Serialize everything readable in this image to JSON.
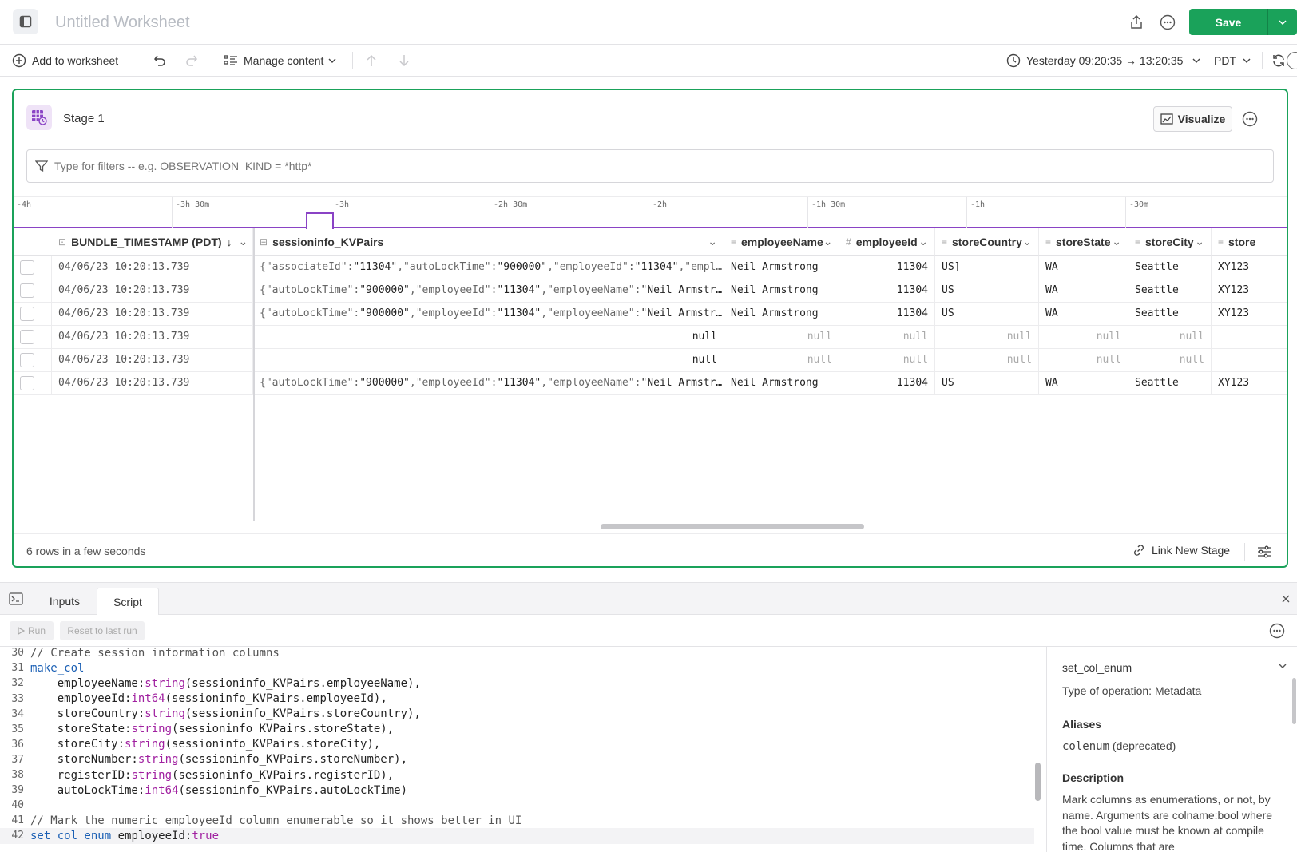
{
  "header": {
    "title": "Untitled Worksheet",
    "save_label": "Save"
  },
  "toolbar": {
    "add_to_worksheet": "Add to worksheet",
    "manage_content": "Manage content",
    "time_range": "Yesterday 09:20:35 → 13:20:35",
    "timezone": "PDT"
  },
  "stage": {
    "name": "Stage 1",
    "visualize_label": "Visualize",
    "filter_placeholder": "Type for filters -- e.g. OBSERVATION_KIND = *http*",
    "timeline_ticks": [
      "-4h",
      "-3h 30m",
      "-3h",
      "-2h 30m",
      "-2h",
      "-1h 30m",
      "-1h",
      "-30m"
    ],
    "columns": [
      {
        "label": "BUNDLE_TIMESTAMP (PDT)",
        "icon": "timestamp-icon"
      },
      {
        "label": "sessioninfo_KVPairs",
        "icon": "object-icon"
      },
      {
        "label": "employeeName",
        "icon": "string-icon"
      },
      {
        "label": "employeeId",
        "icon": "number-icon"
      },
      {
        "label": "storeCountry",
        "icon": "string-icon"
      },
      {
        "label": "storeState",
        "icon": "string-icon"
      },
      {
        "label": "storeCity",
        "icon": "string-icon"
      },
      {
        "label": "store",
        "icon": "string-icon"
      }
    ],
    "rows": [
      {
        "ts": "04/06/23 10:20:13.739",
        "kv": [
          [
            "\"associateId\"",
            "\"11304\""
          ],
          [
            "\"autoLockTime\"",
            "\"900000\""
          ],
          [
            "\"employeeId\"",
            "\"11304\""
          ],
          [
            "\"empl…",
            ""
          ]
        ],
        "kv_null": false,
        "employeeName": "Neil Armstrong",
        "employeeId": "11304",
        "storeCountry": "US]",
        "storeState": "WA",
        "storeCity": "Seattle",
        "store": "XY123"
      },
      {
        "ts": "04/06/23 10:20:13.739",
        "kv": [
          [
            "\"autoLockTime\"",
            "\"900000\""
          ],
          [
            "\"employeeId\"",
            "\"11304\""
          ],
          [
            "\"employeeName\"",
            "\"Neil Armstr…"
          ]
        ],
        "kv_null": false,
        "employeeName": "Neil Armstrong",
        "employeeId": "11304",
        "storeCountry": "US",
        "storeState": "WA",
        "storeCity": "Seattle",
        "store": "XY123"
      },
      {
        "ts": "04/06/23 10:20:13.739",
        "kv": [
          [
            "\"autoLockTime\"",
            "\"900000\""
          ],
          [
            "\"employeeId\"",
            "\"11304\""
          ],
          [
            "\"employeeName\"",
            "\"Neil Armstr…"
          ]
        ],
        "kv_null": false,
        "employeeName": "Neil Armstrong",
        "employeeId": "11304",
        "storeCountry": "US",
        "storeState": "WA",
        "storeCity": "Seattle",
        "store": "XY123"
      },
      {
        "ts": "04/06/23 10:20:13.739",
        "kv_text": "null",
        "kv_null": true,
        "employeeName": "null",
        "employeeId": "null",
        "storeCountry": "null",
        "storeState": "null",
        "storeCity": "null",
        "store": ""
      },
      {
        "ts": "04/06/23 10:20:13.739",
        "kv_text": "null",
        "kv_null": true,
        "employeeName": "null",
        "employeeId": "null",
        "storeCountry": "null",
        "storeState": "null",
        "storeCity": "null",
        "store": ""
      },
      {
        "ts": "04/06/23 10:20:13.739",
        "kv": [
          [
            "\"autoLockTime\"",
            "\"900000\""
          ],
          [
            "\"employeeId\"",
            "\"11304\""
          ],
          [
            "\"employeeName\"",
            "\"Neil Armstr…"
          ]
        ],
        "kv_null": false,
        "employeeName": "Neil Armstrong",
        "employeeId": "11304",
        "storeCountry": "US",
        "storeState": "WA",
        "storeCity": "Seattle",
        "store": "XY123"
      }
    ],
    "row_count": "6 rows in a few seconds",
    "link_new_stage": "Link New Stage"
  },
  "console": {
    "tabs": [
      "Inputs",
      "Script"
    ],
    "active_tab": "Script",
    "run_label": "Run",
    "reset_label": "Reset to last run",
    "code_lines": [
      {
        "n": "30",
        "tokens": [
          [
            "com",
            "// Create session information columns"
          ]
        ]
      },
      {
        "n": "31",
        "tokens": [
          [
            "kw",
            "make_col"
          ]
        ]
      },
      {
        "n": "32",
        "tokens": [
          [
            "pl",
            "    employeeName:"
          ],
          [
            "ty",
            "string"
          ],
          [
            "pl",
            "(sessioninfo_KVPairs.employeeName),"
          ]
        ]
      },
      {
        "n": "33",
        "tokens": [
          [
            "pl",
            "    employeeId:"
          ],
          [
            "ty",
            "int64"
          ],
          [
            "pl",
            "(sessioninfo_KVPairs.employeeId),"
          ]
        ]
      },
      {
        "n": "34",
        "tokens": [
          [
            "pl",
            "    storeCountry:"
          ],
          [
            "ty",
            "string"
          ],
          [
            "pl",
            "(sessioninfo_KVPairs.storeCountry),"
          ]
        ]
      },
      {
        "n": "35",
        "tokens": [
          [
            "pl",
            "    storeState:"
          ],
          [
            "ty",
            "string"
          ],
          [
            "pl",
            "(sessioninfo_KVPairs.storeState),"
          ]
        ]
      },
      {
        "n": "36",
        "tokens": [
          [
            "pl",
            "    storeCity:"
          ],
          [
            "ty",
            "string"
          ],
          [
            "pl",
            "(sessioninfo_KVPairs.storeCity),"
          ]
        ]
      },
      {
        "n": "37",
        "tokens": [
          [
            "pl",
            "    storeNumber:"
          ],
          [
            "ty",
            "string"
          ],
          [
            "pl",
            "(sessioninfo_KVPairs.storeNumber),"
          ]
        ]
      },
      {
        "n": "38",
        "tokens": [
          [
            "pl",
            "    registerID:"
          ],
          [
            "ty",
            "string"
          ],
          [
            "pl",
            "(sessioninfo_KVPairs.registerID),"
          ]
        ]
      },
      {
        "n": "39",
        "tokens": [
          [
            "pl",
            "    autoLockTime:"
          ],
          [
            "ty",
            "int64"
          ],
          [
            "pl",
            "(sessioninfo_KVPairs.autoLockTime)"
          ]
        ]
      },
      {
        "n": "40",
        "tokens": []
      },
      {
        "n": "41",
        "tokens": [
          [
            "com",
            "// Mark the numeric employeeId column enumerable so it shows better in UI"
          ]
        ]
      },
      {
        "n": "42",
        "tokens": [
          [
            "kw",
            "set_col_enum"
          ],
          [
            "pl",
            " employeeId:"
          ],
          [
            "bl",
            "true"
          ]
        ]
      }
    ],
    "help": {
      "function_name": "set_col_enum",
      "operation_type": "Type of operation: Metadata",
      "aliases_heading": "Aliases",
      "alias_name": "colenum",
      "alias_note": "(deprecated)",
      "description_heading": "Description",
      "description": "Mark columns as enumerations, or not, by name. Arguments are colname:bool where the bool value must be known at compile time. Columns that are"
    }
  },
  "colors": {
    "accent_green": "#1aa25a",
    "timeline_purple": "#8a43c5",
    "type_purple": "#a020a0",
    "keyword_blue": "#1a5fb4"
  }
}
